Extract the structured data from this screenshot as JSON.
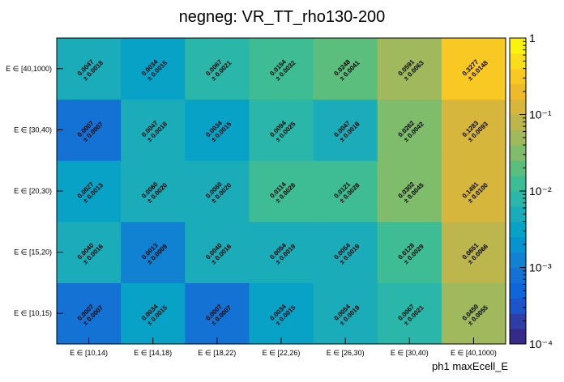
{
  "chart_data": {
    "type": "heatmap",
    "title": "negneg: VR_TT_rho130-200",
    "xlabel": "ph1 maxEcell_E",
    "ylabel": "",
    "x_categories": [
      "E ∈ [10,14)",
      "E ∈ [14,18)",
      "E ∈ [18,22)",
      "E ∈ [22,26)",
      "E ∈ [26,30)",
      "E ∈ [30,40)",
      "E ∈ [40,1000)"
    ],
    "y_categories": [
      "E ∈ [10,15)",
      "E ∈ [15,20)",
      "E ∈ [20,30)",
      "E ∈ [30,40)",
      "E ∈ [40,1000)"
    ],
    "values": [
      [
        "0.0007",
        "0.0034",
        "0.0007",
        "0.0034",
        "0.0054",
        "0.0067",
        "0.0450"
      ],
      [
        "0.0040",
        "0.0013",
        "0.0040",
        "0.0054",
        "0.0054",
        "0.0128",
        "0.0651"
      ],
      [
        "0.0027",
        "0.0060",
        "0.0060",
        "0.0114",
        "0.0121",
        "0.0302",
        "0.1491"
      ],
      [
        "0.0007",
        "0.0047",
        "0.0034",
        "0.0094",
        "0.0047",
        "0.0262",
        "0.1283"
      ],
      [
        "0.0047",
        "0.0034",
        "0.0067",
        "0.0154",
        "0.0248",
        "0.0591",
        "0.3277"
      ]
    ],
    "errors": [
      [
        "0.0007",
        "0.0015",
        "0.0007",
        "0.0015",
        "0.0019",
        "0.0021",
        "0.0055"
      ],
      [
        "0.0016",
        "0.0009",
        "0.0016",
        "0.0019",
        "0.0019",
        "0.0029",
        "0.0066"
      ],
      [
        "0.0013",
        "0.0020",
        "0.0020",
        "0.0028",
        "0.0028",
        "0.0045",
        "0.0100"
      ],
      [
        "0.0007",
        "0.0018",
        "0.0015",
        "0.0025",
        "0.0018",
        "0.0042",
        "0.0093"
      ],
      [
        "0.0018",
        "0.0015",
        "0.0021",
        "0.0032",
        "0.0041",
        "0.0063",
        "0.0148"
      ]
    ],
    "zscale": "log",
    "zlim": [
      0.0001,
      1
    ],
    "colorbar_ticks": [
      {
        "value": 1,
        "label": "1"
      },
      {
        "value": 0.1,
        "label": "10⁻¹"
      },
      {
        "value": 0.01,
        "label": "10⁻²"
      },
      {
        "value": 0.001,
        "label": "10⁻³"
      },
      {
        "value": 0.0001,
        "label": "10⁻⁴"
      }
    ],
    "palette": [
      "#352a87",
      "#2f3da7",
      "#1c54ca",
      "#0f66d8",
      "#1472d4",
      "#1181d2",
      "#0793d0",
      "#07a2c6",
      "#1aacb9",
      "#2ab6a8",
      "#3ebc93",
      "#5bbe7d",
      "#7fbc6b",
      "#a0b95c",
      "#bcb64c",
      "#d6b63b",
      "#ecba2b",
      "#f9c923",
      "#f9de1c",
      "#f9f30e"
    ],
    "error_prefix": "± "
  }
}
